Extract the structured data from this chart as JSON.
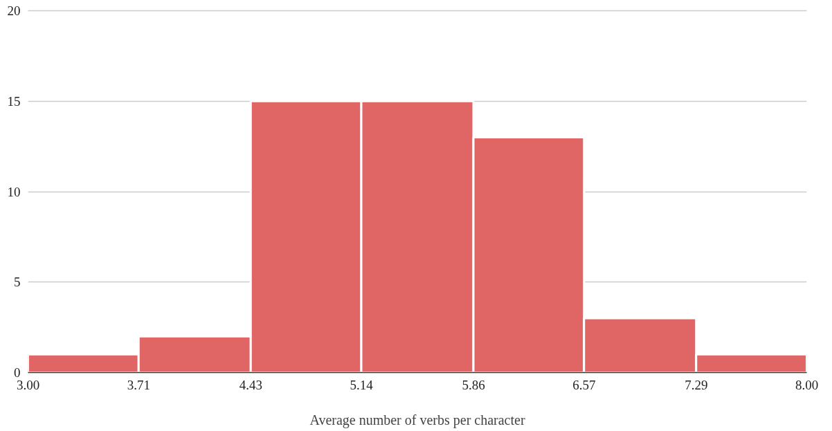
{
  "chart_data": {
    "type": "histogram",
    "xlabel": "Average number of verbs per character",
    "bins": [
      3.0,
      3.71,
      4.43,
      5.14,
      5.86,
      6.57,
      7.29,
      8.0
    ],
    "values": [
      1,
      2,
      15,
      15,
      13,
      3,
      1
    ],
    "color": "#e06666",
    "xlim": [
      3,
      8
    ],
    "xticks": [
      {
        "value": 3.0,
        "label": "3.00"
      },
      3.71,
      4.43,
      5.14,
      5.86,
      6.57,
      7.29,
      {
        "value": 8.0,
        "label": "8.00"
      }
    ],
    "ylim": [
      0,
      20
    ],
    "yticks": [
      0,
      5,
      10,
      15,
      20
    ],
    "grid": "y"
  }
}
